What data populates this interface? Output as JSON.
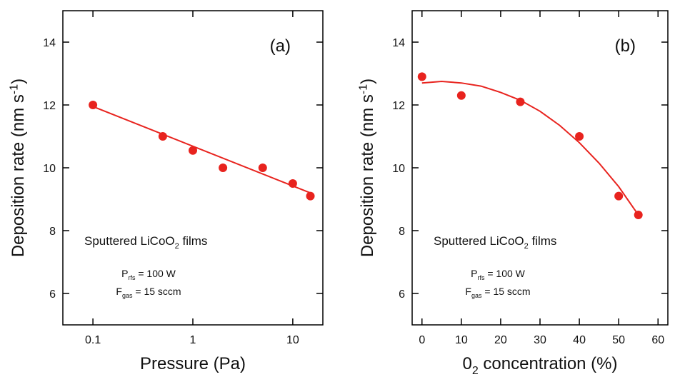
{
  "chart_data": [
    {
      "type": "scatter",
      "xscale": "log",
      "xlabel": [
        "Pressure (Pa)"
      ],
      "ylabel": [
        "Deposition rate (nm s",
        "-1",
        ")"
      ],
      "xlim": [
        0.05,
        20
      ],
      "ylim": [
        5,
        15
      ],
      "xticks": [
        0.1,
        1,
        10
      ],
      "yticks": [
        6,
        8,
        10,
        12,
        14
      ],
      "series": [
        {
          "mode": "markers",
          "color": "#e8231e",
          "x": [
            0.1,
            0.5,
            1,
            2,
            5,
            10,
            15
          ],
          "values": [
            12.0,
            11.0,
            10.55,
            10.0,
            10.0,
            9.5,
            9.1
          ]
        },
        {
          "mode": "lines",
          "color": "#e8231e",
          "x": [
            0.1,
            15
          ],
          "values": [
            11.95,
            9.2
          ]
        }
      ],
      "annotations": [
        {
          "parts": [
            "(a)"
          ]
        },
        {
          "parts": [
            "Sputtered LiCoO",
            "2",
            " films"
          ]
        },
        {
          "parts": [
            "P",
            "rfs",
            " = 100 W"
          ]
        },
        {
          "parts": [
            "F",
            "gas",
            " = 15 sccm"
          ]
        }
      ]
    },
    {
      "type": "scatter",
      "xscale": "linear",
      "xlabel": [
        "0",
        "2",
        " concentration (%)"
      ],
      "ylabel": [
        "Deposition rate (nm s",
        "-1",
        ")"
      ],
      "xlim": [
        -2.5,
        62.5
      ],
      "ylim": [
        5,
        15
      ],
      "xticks": [
        0,
        10,
        20,
        30,
        40,
        50,
        60
      ],
      "yticks": [
        6,
        8,
        10,
        12,
        14
      ],
      "series": [
        {
          "mode": "markers",
          "color": "#e8231e",
          "x": [
            0,
            10,
            25,
            40,
            50,
            55
          ],
          "values": [
            12.9,
            12.3,
            12.1,
            11.0,
            9.1,
            8.5
          ]
        },
        {
          "mode": "lines",
          "color": "#e8231e",
          "x": [
            0,
            5,
            10,
            15,
            20,
            25,
            30,
            35,
            40,
            45,
            50,
            55
          ],
          "values": [
            12.7,
            12.75,
            12.7,
            12.6,
            12.4,
            12.15,
            11.8,
            11.35,
            10.8,
            10.15,
            9.4,
            8.5
          ]
        }
      ],
      "annotations": [
        {
          "parts": [
            "(b)"
          ]
        },
        {
          "parts": [
            "Sputtered LiCoO",
            "2",
            " films"
          ]
        },
        {
          "parts": [
            "P",
            "rfs",
            " = 100 W"
          ]
        },
        {
          "parts": [
            "F",
            "gas",
            " = 15 sccm"
          ]
        }
      ]
    }
  ]
}
